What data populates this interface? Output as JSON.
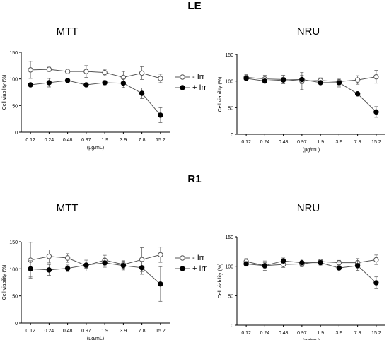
{
  "sections": [
    {
      "label": "LE"
    },
    {
      "label": "R1"
    }
  ],
  "legend": {
    "items": [
      {
        "label": "- Irr",
        "marker": "open-circle"
      },
      {
        "label": "+ Irr",
        "marker": "filled-circle"
      }
    ]
  },
  "colors": {
    "line": "#555555",
    "filled": "#000000",
    "open_fill": "#ffffff"
  },
  "chart_data": [
    {
      "type": "line",
      "section": "LE",
      "title": "MTT",
      "xlabel": "(µg/mL)",
      "ylabel": "Cell viability (%)",
      "categories": [
        "0.12",
        "0.24",
        "0.48",
        "0.97",
        "1.9",
        "3.9",
        "7.8",
        "15.2"
      ],
      "ylim": [
        0,
        150
      ],
      "yticks": [
        0,
        50,
        100,
        150
      ],
      "series": [
        {
          "name": "- Irr",
          "marker": "open",
          "values": [
            117,
            118,
            114,
            114,
            112,
            103,
            111,
            101
          ],
          "errors": [
            16,
            4,
            3,
            11,
            6,
            11,
            12,
            8
          ]
        },
        {
          "name": "+ Irr",
          "marker": "filled",
          "values": [
            89,
            93,
            97,
            89,
            93,
            92,
            73,
            32
          ],
          "errors": [
            2,
            8,
            2,
            2,
            4,
            8,
            10,
            14
          ]
        }
      ]
    },
    {
      "type": "line",
      "section": "LE",
      "title": "NRU",
      "xlabel": "(µg/mL)",
      "ylabel": "Cell viability (%)",
      "categories": [
        "0.12",
        "0.24",
        "0.48",
        "0.97",
        "1.9",
        "3.9",
        "7.8",
        "15.2"
      ],
      "ylim": [
        0,
        150
      ],
      "yticks": [
        0,
        50,
        100,
        150
      ],
      "series": [
        {
          "name": "- Irr",
          "marker": "open",
          "values": [
            107,
            104,
            103,
            100,
            101,
            99,
            102,
            108
          ],
          "errors": [
            5,
            7,
            8,
            16,
            5,
            6,
            8,
            12
          ]
        },
        {
          "name": "+ Irr",
          "marker": "filled",
          "values": [
            105,
            100,
            102,
            103,
            97,
            97,
            76,
            42
          ],
          "errors": [
            3,
            3,
            3,
            8,
            2,
            8,
            2,
            10
          ]
        }
      ]
    },
    {
      "type": "line",
      "section": "R1",
      "title": "MTT",
      "xlabel": "(µg/mL)",
      "ylabel": "Cell viability (%)",
      "categories": [
        "0.12",
        "0.24",
        "0.48",
        "0.97",
        "1.9",
        "3.9",
        "7.8",
        "15.2"
      ],
      "ylim": [
        0,
        150
      ],
      "yticks": [
        0,
        50,
        100,
        150
      ],
      "series": [
        {
          "name": "- Irr",
          "marker": "open",
          "values": [
            116,
            123,
            120,
            106,
            116,
            108,
            117,
            126
          ],
          "errors": [
            33,
            12,
            8,
            10,
            9,
            7,
            22,
            14
          ]
        },
        {
          "name": "+ Irr",
          "marker": "filled",
          "values": [
            100,
            98,
            101,
            107,
            111,
            106,
            102,
            72
          ],
          "errors": [
            15,
            10,
            6,
            6,
            8,
            8,
            12,
            32
          ]
        }
      ]
    },
    {
      "type": "line",
      "section": "R1",
      "title": "NRU",
      "xlabel": "(µg/mL)",
      "ylabel": "Cell viability (%)",
      "categories": [
        "0.12",
        "0.24",
        "0.48",
        "0.97",
        "1.9",
        "3.9",
        "7.8",
        "15.2"
      ],
      "ylim": [
        0,
        150
      ],
      "yticks": [
        0,
        50,
        100,
        150
      ],
      "series": [
        {
          "name": "- Irr",
          "marker": "open",
          "values": [
            108,
            101,
            103,
            104,
            108,
            106,
            106,
            111
          ],
          "errors": [
            5,
            5,
            5,
            5,
            4,
            4,
            7,
            8
          ]
        },
        {
          "name": "+ Irr",
          "marker": "filled",
          "values": [
            104,
            101,
            109,
            106,
            106,
            97,
            101,
            72
          ],
          "errors": [
            4,
            8,
            5,
            6,
            4,
            10,
            8,
            10
          ]
        }
      ]
    }
  ]
}
